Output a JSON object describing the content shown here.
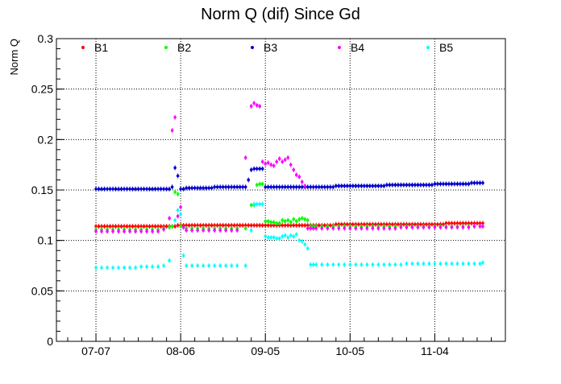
{
  "chart_data": {
    "type": "scatter",
    "title": "Norm Q (dif) Since Gd",
    "xlabel": "",
    "ylabel": "Norm Q",
    "ylim": [
      0,
      0.3
    ],
    "y_ticks": [
      "0",
      "0.05",
      "0.1",
      "0.15",
      "0.2",
      "0.25",
      "0.3"
    ],
    "x_ticks": [
      {
        "label": "07-07",
        "x": 0
      },
      {
        "label": "08-06",
        "x": 30
      },
      {
        "label": "09-05",
        "x": 60
      },
      {
        "label": "10-05",
        "x": 90
      },
      {
        "label": "11-04",
        "x": 120
      }
    ],
    "xlim": [
      -14,
      145
    ],
    "grid": true,
    "legend": "top, horizontal",
    "series": [
      {
        "name": "B1",
        "color": "#ff0000",
        "x": [
          0,
          1,
          2,
          3,
          4,
          5,
          6,
          7,
          8,
          9,
          10,
          11,
          12,
          13,
          14,
          15,
          16,
          17,
          18,
          19,
          20,
          21,
          22,
          23,
          24,
          25,
          26,
          27,
          28,
          29,
          30,
          31,
          32,
          33,
          34,
          35,
          36,
          37,
          38,
          39,
          40,
          41,
          42,
          43,
          44,
          45,
          46,
          47,
          48,
          49,
          50,
          51,
          52,
          53,
          54,
          55,
          56,
          57,
          58,
          59,
          60,
          61,
          62,
          63,
          64,
          65,
          66,
          67,
          68,
          69,
          70,
          71,
          72,
          73,
          74,
          75,
          76,
          77,
          78,
          79,
          80,
          81,
          82,
          83,
          84,
          85,
          86,
          87,
          88,
          89,
          90,
          91,
          92,
          93,
          94,
          95,
          96,
          97,
          98,
          99,
          100,
          101,
          102,
          103,
          104,
          105,
          106,
          107,
          108,
          109,
          110,
          111,
          112,
          113,
          114,
          115,
          116,
          117,
          118,
          119,
          120,
          121,
          122,
          123,
          124,
          125,
          126,
          127,
          128,
          129,
          130,
          131,
          132,
          133,
          134,
          135,
          136,
          137
        ],
        "y": [
          0.114,
          0.114,
          0.114,
          0.114,
          0.114,
          0.114,
          0.114,
          0.114,
          0.114,
          0.114,
          0.114,
          0.114,
          0.114,
          0.114,
          0.114,
          0.114,
          0.114,
          0.114,
          0.114,
          0.114,
          0.114,
          0.114,
          0.114,
          0.114,
          0.114,
          0.114,
          0.114,
          0.114,
          0.114,
          0.115,
          0.115,
          0.115,
          0.115,
          0.115,
          0.115,
          0.115,
          0.115,
          0.115,
          0.115,
          0.115,
          0.115,
          0.115,
          0.115,
          0.115,
          0.115,
          0.115,
          0.115,
          0.115,
          0.115,
          0.115,
          0.115,
          0.115,
          0.115,
          0.115,
          0.115,
          0.115,
          0.115,
          0.115,
          0.115,
          0.115,
          0.115,
          0.115,
          0.115,
          0.115,
          0.115,
          0.115,
          0.115,
          0.115,
          0.115,
          0.115,
          0.115,
          0.115,
          0.115,
          0.115,
          0.115,
          0.115,
          0.115,
          0.115,
          0.115,
          0.115,
          0.115,
          0.115,
          0.115,
          0.115,
          0.115,
          0.116,
          0.116,
          0.116,
          0.116,
          0.116,
          0.116,
          0.116,
          0.116,
          0.116,
          0.116,
          0.116,
          0.116,
          0.116,
          0.116,
          0.116,
          0.116,
          0.116,
          0.116,
          0.116,
          0.116,
          0.116,
          0.116,
          0.116,
          0.116,
          0.116,
          0.116,
          0.116,
          0.116,
          0.116,
          0.116,
          0.116,
          0.116,
          0.116,
          0.116,
          0.116,
          0.116,
          0.116,
          0.116,
          0.116,
          0.117,
          0.117,
          0.117,
          0.117,
          0.117,
          0.117,
          0.117,
          0.117,
          0.117,
          0.117,
          0.117,
          0.117,
          0.117,
          0.117
        ]
      },
      {
        "name": "B2",
        "color": "#00ff00",
        "x": [
          0,
          2,
          4,
          6,
          8,
          10,
          12,
          14,
          16,
          18,
          20,
          22,
          24,
          26,
          27,
          28,
          29,
          30,
          32,
          34,
          36,
          38,
          40,
          42,
          44,
          46,
          48,
          50,
          53,
          55,
          56,
          57,
          58,
          59,
          60,
          61,
          62,
          63,
          64,
          65,
          66,
          67,
          68,
          69,
          70,
          71,
          72,
          73,
          74,
          75,
          76,
          77,
          78,
          80,
          82,
          84,
          86,
          88,
          90,
          92,
          94,
          96,
          98,
          100,
          102,
          104,
          106,
          108,
          110,
          112,
          114,
          116,
          118,
          120,
          122,
          124,
          126,
          128,
          130,
          132,
          134,
          136,
          137
        ],
        "y": [
          0.111,
          0.111,
          0.111,
          0.111,
          0.111,
          0.111,
          0.111,
          0.111,
          0.111,
          0.111,
          0.111,
          0.111,
          0.112,
          0.113,
          0.114,
          0.148,
          0.146,
          0.114,
          0.112,
          0.112,
          0.112,
          0.112,
          0.112,
          0.112,
          0.112,
          0.112,
          0.112,
          0.112,
          0.112,
          0.135,
          0.135,
          0.155,
          0.156,
          0.156,
          0.119,
          0.119,
          0.118,
          0.118,
          0.117,
          0.117,
          0.12,
          0.119,
          0.12,
          0.118,
          0.121,
          0.119,
          0.121,
          0.122,
          0.121,
          0.12,
          0.114,
          0.114,
          0.114,
          0.114,
          0.114,
          0.114,
          0.114,
          0.114,
          0.114,
          0.114,
          0.114,
          0.114,
          0.114,
          0.114,
          0.114,
          0.114,
          0.114,
          0.114,
          0.114,
          0.114,
          0.114,
          0.114,
          0.114,
          0.114,
          0.114,
          0.114,
          0.114,
          0.114,
          0.114,
          0.114,
          0.114,
          0.114,
          0.114
        ]
      },
      {
        "name": "B3",
        "color": "#0000cc",
        "x": [
          0,
          1,
          2,
          3,
          4,
          5,
          6,
          7,
          8,
          9,
          10,
          11,
          12,
          13,
          14,
          15,
          16,
          17,
          18,
          19,
          20,
          21,
          22,
          23,
          24,
          25,
          26,
          27,
          28,
          29,
          30,
          31,
          32,
          33,
          34,
          35,
          36,
          37,
          38,
          39,
          40,
          41,
          42,
          43,
          44,
          45,
          46,
          47,
          48,
          49,
          50,
          51,
          52,
          53,
          54,
          55,
          56,
          57,
          58,
          59,
          60,
          61,
          62,
          63,
          64,
          65,
          66,
          67,
          68,
          69,
          70,
          71,
          72,
          73,
          74,
          75,
          76,
          77,
          78,
          79,
          80,
          81,
          82,
          83,
          84,
          85,
          86,
          87,
          88,
          89,
          90,
          91,
          92,
          93,
          94,
          95,
          96,
          97,
          98,
          99,
          100,
          101,
          102,
          103,
          104,
          105,
          106,
          107,
          108,
          109,
          110,
          111,
          112,
          113,
          114,
          115,
          116,
          117,
          118,
          119,
          120,
          121,
          122,
          123,
          124,
          125,
          126,
          127,
          128,
          129,
          130,
          131,
          132,
          133,
          134,
          135,
          136,
          137
        ],
        "y": [
          0.151,
          0.151,
          0.151,
          0.151,
          0.151,
          0.151,
          0.151,
          0.151,
          0.151,
          0.151,
          0.151,
          0.151,
          0.151,
          0.151,
          0.151,
          0.151,
          0.151,
          0.151,
          0.151,
          0.151,
          0.151,
          0.151,
          0.151,
          0.151,
          0.151,
          0.151,
          0.151,
          0.153,
          0.172,
          0.164,
          0.151,
          0.151,
          0.152,
          0.152,
          0.152,
          0.152,
          0.152,
          0.152,
          0.152,
          0.152,
          0.152,
          0.152,
          0.153,
          0.153,
          0.153,
          0.153,
          0.153,
          0.153,
          0.153,
          0.153,
          0.153,
          0.153,
          0.153,
          0.153,
          0.16,
          0.17,
          0.171,
          0.171,
          0.171,
          0.171,
          0.153,
          0.153,
          0.153,
          0.153,
          0.153,
          0.153,
          0.153,
          0.153,
          0.153,
          0.153,
          0.153,
          0.153,
          0.153,
          0.153,
          0.153,
          0.153,
          0.153,
          0.153,
          0.153,
          0.153,
          0.153,
          0.153,
          0.153,
          0.153,
          0.153,
          0.154,
          0.154,
          0.154,
          0.154,
          0.154,
          0.154,
          0.154,
          0.154,
          0.154,
          0.154,
          0.154,
          0.154,
          0.154,
          0.154,
          0.154,
          0.154,
          0.154,
          0.154,
          0.155,
          0.155,
          0.155,
          0.155,
          0.155,
          0.155,
          0.155,
          0.155,
          0.155,
          0.155,
          0.155,
          0.155,
          0.155,
          0.155,
          0.155,
          0.155,
          0.155,
          0.156,
          0.156,
          0.156,
          0.156,
          0.156,
          0.156,
          0.156,
          0.156,
          0.156,
          0.156,
          0.156,
          0.156,
          0.156,
          0.157,
          0.157,
          0.157,
          0.157,
          0.157
        ]
      },
      {
        "name": "B4",
        "color": "#ff00ff",
        "x": [
          0,
          2,
          4,
          6,
          8,
          10,
          12,
          14,
          16,
          18,
          20,
          22,
          24,
          26,
          27,
          28,
          29,
          30,
          31,
          32,
          34,
          36,
          38,
          40,
          42,
          44,
          46,
          48,
          50,
          53,
          55,
          56,
          57,
          58,
          59,
          60,
          61,
          62,
          63,
          64,
          65,
          66,
          67,
          68,
          69,
          70,
          71,
          72,
          73,
          74,
          75,
          76,
          77,
          78,
          80,
          82,
          84,
          86,
          88,
          90,
          92,
          94,
          96,
          98,
          100,
          102,
          104,
          106,
          108,
          110,
          112,
          114,
          116,
          118,
          120,
          122,
          124,
          126,
          128,
          130,
          132,
          134,
          136,
          137
        ],
        "y": [
          0.109,
          0.109,
          0.109,
          0.109,
          0.109,
          0.109,
          0.109,
          0.109,
          0.109,
          0.109,
          0.109,
          0.109,
          0.111,
          0.122,
          0.209,
          0.222,
          0.124,
          0.133,
          0.113,
          0.11,
          0.11,
          0.11,
          0.11,
          0.11,
          0.11,
          0.11,
          0.11,
          0.11,
          0.11,
          0.182,
          0.233,
          0.236,
          0.234,
          0.233,
          0.178,
          0.176,
          0.177,
          0.175,
          0.174,
          0.178,
          0.181,
          0.178,
          0.18,
          0.182,
          0.175,
          0.17,
          0.165,
          0.163,
          0.158,
          0.154,
          0.112,
          0.112,
          0.112,
          0.112,
          0.112,
          0.112,
          0.112,
          0.112,
          0.112,
          0.112,
          0.112,
          0.112,
          0.112,
          0.112,
          0.112,
          0.112,
          0.112,
          0.112,
          0.113,
          0.113,
          0.113,
          0.113,
          0.113,
          0.113,
          0.113,
          0.113,
          0.113,
          0.113,
          0.113,
          0.113,
          0.113,
          0.114,
          0.114,
          0.114
        ]
      },
      {
        "name": "B5",
        "color": "#00ffff",
        "x": [
          0,
          2,
          4,
          6,
          8,
          10,
          12,
          14,
          16,
          18,
          20,
          22,
          24,
          26,
          28,
          29,
          30,
          31,
          32,
          34,
          36,
          38,
          40,
          42,
          44,
          46,
          48,
          50,
          53,
          55,
          56,
          57,
          58,
          59,
          60,
          61,
          62,
          63,
          64,
          65,
          66,
          67,
          68,
          69,
          70,
          71,
          72,
          73,
          74,
          75,
          76,
          77,
          78,
          80,
          82,
          84,
          86,
          88,
          90,
          92,
          94,
          96,
          98,
          100,
          102,
          104,
          106,
          108,
          110,
          112,
          114,
          116,
          118,
          120,
          122,
          124,
          126,
          128,
          130,
          132,
          134,
          136,
          137
        ],
        "y": [
          0.073,
          0.073,
          0.073,
          0.073,
          0.073,
          0.073,
          0.073,
          0.073,
          0.074,
          0.074,
          0.074,
          0.074,
          0.075,
          0.08,
          0.12,
          0.13,
          0.126,
          0.085,
          0.075,
          0.075,
          0.075,
          0.075,
          0.075,
          0.075,
          0.075,
          0.075,
          0.075,
          0.075,
          0.075,
          0.11,
          0.136,
          0.136,
          0.136,
          0.136,
          0.104,
          0.103,
          0.103,
          0.103,
          0.102,
          0.102,
          0.104,
          0.105,
          0.103,
          0.105,
          0.104,
          0.106,
          0.1,
          0.099,
          0.096,
          0.092,
          0.076,
          0.076,
          0.076,
          0.076,
          0.076,
          0.076,
          0.076,
          0.076,
          0.076,
          0.076,
          0.076,
          0.076,
          0.076,
          0.076,
          0.076,
          0.076,
          0.076,
          0.076,
          0.077,
          0.077,
          0.077,
          0.077,
          0.077,
          0.077,
          0.077,
          0.077,
          0.077,
          0.077,
          0.077,
          0.077,
          0.077,
          0.077,
          0.078
        ]
      }
    ]
  }
}
